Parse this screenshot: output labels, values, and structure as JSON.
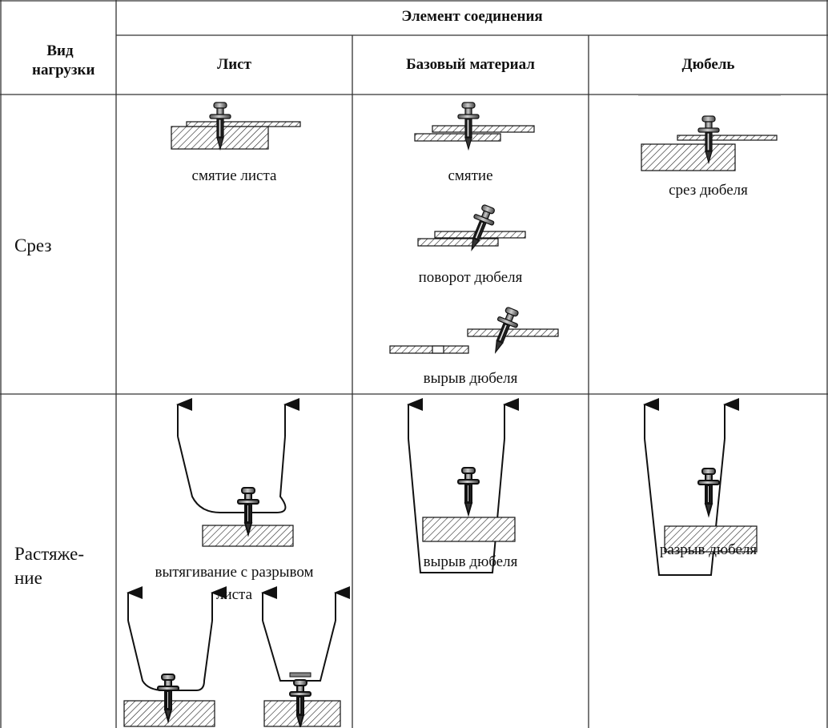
{
  "table": {
    "header": "Элемент соединения",
    "corner": "Вид нагрузки",
    "columns": [
      "Лист",
      "Базовый материал",
      "Дюбель"
    ],
    "rows": [
      {
        "load": "Срез",
        "cells": [
          [
            "смятие листа"
          ],
          [
            "смятие",
            "поворот дюбеля",
            "вырыв дюбеля"
          ],
          [
            "срез дюбеля"
          ]
        ]
      },
      {
        "load": "Растяже-\nние",
        "cells": [
          [
            "вытягивание с разрывом листа"
          ],
          [
            "вырыв дюбеля"
          ],
          [
            "разрыв дюбеля"
          ]
        ]
      }
    ]
  }
}
